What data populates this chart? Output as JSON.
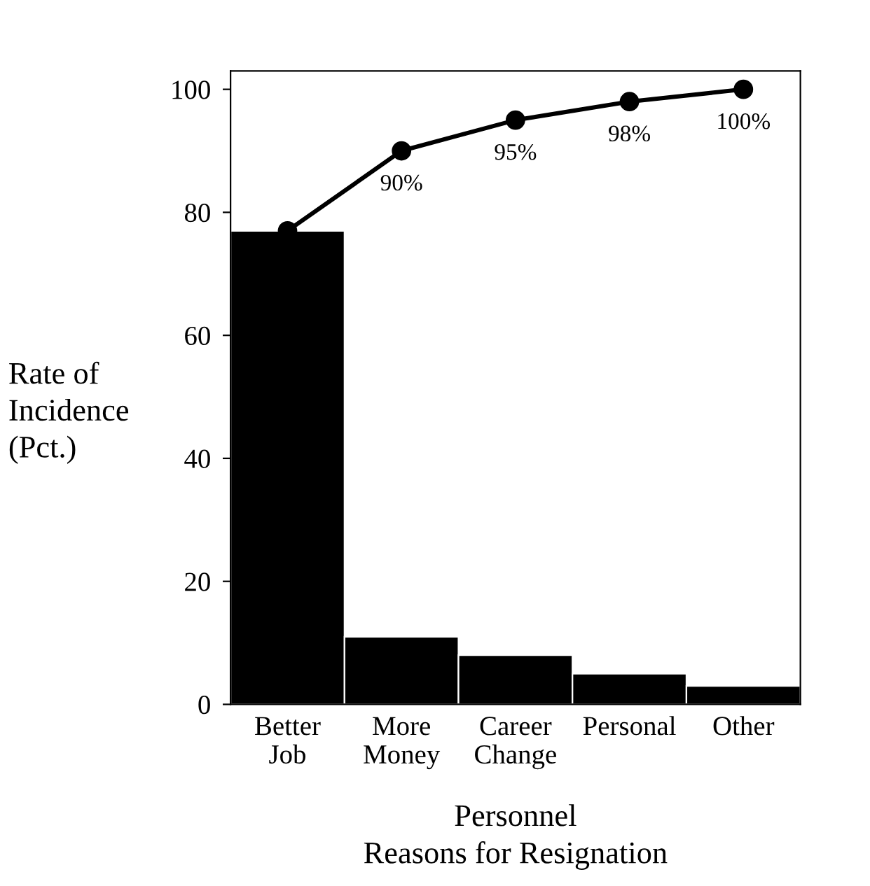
{
  "chart_data": {
    "type": "bar",
    "xlabel": "Personnel\nReasons for Resignation",
    "ylabel": "Rate of\nIncidence\n(Pct.)",
    "categories": [
      "Better\nJob",
      "More\nMoney",
      "Career\nChange",
      "Personal",
      "Other"
    ],
    "series": [
      {
        "color": "#000000",
        "values": [
          77,
          11,
          8,
          5,
          3
        ]
      },
      {
        "type": "line",
        "color": "#000000",
        "values": [
          77,
          90,
          95,
          98,
          100
        ],
        "value_labels": [
          null,
          "90%",
          "95%",
          "98%",
          "100%"
        ],
        "marker": "circle"
      }
    ],
    "ylim": [
      0,
      103
    ],
    "yticks": [
      0,
      20,
      40,
      60,
      80,
      100
    ],
    "grid": false
  }
}
